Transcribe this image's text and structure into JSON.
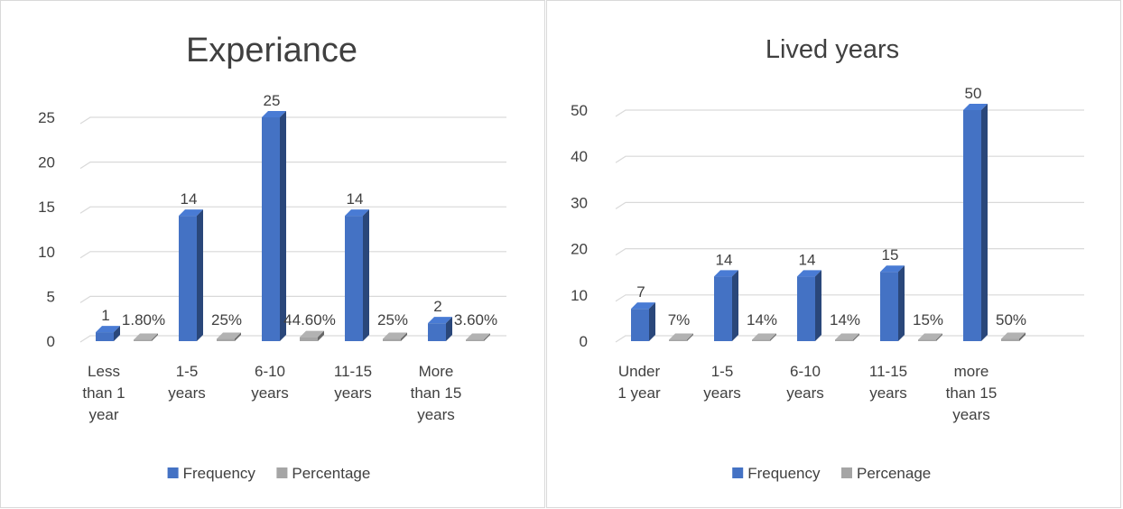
{
  "chart_data": [
    {
      "type": "bar",
      "title": "Experiance",
      "categories": [
        [
          "Less",
          "than 1",
          "year"
        ],
        [
          "1-5",
          "years"
        ],
        [
          "6-10",
          "years"
        ],
        [
          "11-15",
          "years"
        ],
        [
          "More",
          "than 15",
          "years"
        ]
      ],
      "series": [
        {
          "name": "Frequency",
          "values": [
            1,
            14,
            25,
            14,
            2
          ],
          "labels": [
            "1",
            "14",
            "25",
            "14",
            "2"
          ]
        },
        {
          "name": "Percentage",
          "values": [
            0.018,
            0.25,
            0.446,
            0.25,
            0.036
          ],
          "labels": [
            "1.80%",
            "25%",
            "44.60%",
            "25%",
            "3.60%"
          ]
        }
      ],
      "y_ticks": [
        "0",
        "5",
        "10",
        "15",
        "20",
        "25"
      ],
      "ylim": [
        0,
        25
      ],
      "grid": true,
      "legend_position": "bottom",
      "colors": {
        "Frequency": "#4472c4",
        "Percentage": "#a5a5a5"
      }
    },
    {
      "type": "bar",
      "title": "Lived years",
      "categories": [
        [
          "Under",
          "1 year"
        ],
        [
          "1-5",
          "years"
        ],
        [
          "6-10",
          "years"
        ],
        [
          "11-15",
          "years"
        ],
        [
          "more",
          "than 15",
          "years"
        ]
      ],
      "series": [
        {
          "name": "Frequency",
          "values": [
            7,
            14,
            14,
            15,
            50
          ],
          "labels": [
            "7",
            "14",
            "14",
            "15",
            "50"
          ]
        },
        {
          "name": "Percenage",
          "values": [
            0.07,
            0.14,
            0.14,
            0.15,
            0.5
          ],
          "labels": [
            "7%",
            "14%",
            "14%",
            "15%",
            "50%"
          ]
        }
      ],
      "y_ticks": [
        "0",
        "10",
        "20",
        "30",
        "40",
        "50"
      ],
      "ylim": [
        0,
        50
      ],
      "grid": true,
      "legend_position": "bottom",
      "colors": {
        "Frequency": "#4472c4",
        "Percenage": "#a5a5a5"
      }
    }
  ]
}
